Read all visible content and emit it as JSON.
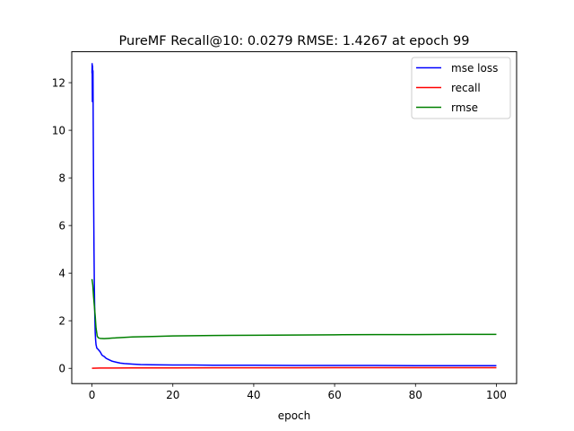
{
  "chart_data": {
    "type": "line",
    "title": "PureMF Recall@10: 0.0279 RMSE: 1.4267 at epoch 99",
    "xlabel": "epoch",
    "ylabel": "",
    "xlim": [
      -5,
      105
    ],
    "ylim": [
      -0.64,
      13.3
    ],
    "xticks": [
      0,
      20,
      40,
      60,
      80,
      100
    ],
    "yticks": [
      0,
      2,
      4,
      6,
      8,
      10,
      12
    ],
    "grid": false,
    "legend_position": "top-right",
    "series": [
      {
        "name": "mse loss",
        "color": "#0000ff",
        "x": [
          0,
          0.05,
          0.1,
          0.15,
          0.2,
          0.25,
          0.3,
          0.4,
          0.5,
          0.6,
          0.7,
          0.8,
          0.9,
          1,
          1.2,
          1.5,
          2,
          2.5,
          3,
          3.5,
          4,
          5,
          6,
          7,
          8,
          10,
          12,
          15,
          20,
          25,
          30,
          40,
          50,
          60,
          70,
          80,
          90,
          100
        ],
        "y": [
          12.4,
          12.8,
          11.2,
          12.7,
          12.1,
          12.5,
          10.5,
          7.5,
          5.0,
          3.3,
          2.2,
          1.5,
          1.2,
          1.0,
          0.85,
          0.8,
          0.7,
          0.55,
          0.5,
          0.42,
          0.38,
          0.3,
          0.26,
          0.22,
          0.2,
          0.18,
          0.16,
          0.15,
          0.14,
          0.14,
          0.13,
          0.13,
          0.12,
          0.12,
          0.12,
          0.11,
          0.11,
          0.11
        ]
      },
      {
        "name": "recall",
        "color": "#ff0000",
        "x": [
          0,
          1,
          2,
          5,
          10,
          20,
          30,
          40,
          50,
          60,
          70,
          80,
          90,
          100
        ],
        "y": [
          0.005,
          0.01,
          0.012,
          0.015,
          0.018,
          0.02,
          0.022,
          0.024,
          0.025,
          0.026,
          0.027,
          0.027,
          0.028,
          0.028
        ]
      },
      {
        "name": "rmse",
        "color": "#008000",
        "x": [
          0,
          0.2,
          0.4,
          0.6,
          0.8,
          1,
          1.3,
          1.6,
          2,
          3,
          4,
          5,
          6,
          8,
          10,
          15,
          20,
          30,
          40,
          50,
          60,
          70,
          80,
          90,
          100
        ],
        "y": [
          3.75,
          3.5,
          3.0,
          2.6,
          2.2,
          1.7,
          1.35,
          1.28,
          1.26,
          1.25,
          1.26,
          1.27,
          1.28,
          1.3,
          1.32,
          1.34,
          1.36,
          1.38,
          1.39,
          1.4,
          1.41,
          1.42,
          1.42,
          1.43,
          1.43
        ]
      }
    ]
  }
}
